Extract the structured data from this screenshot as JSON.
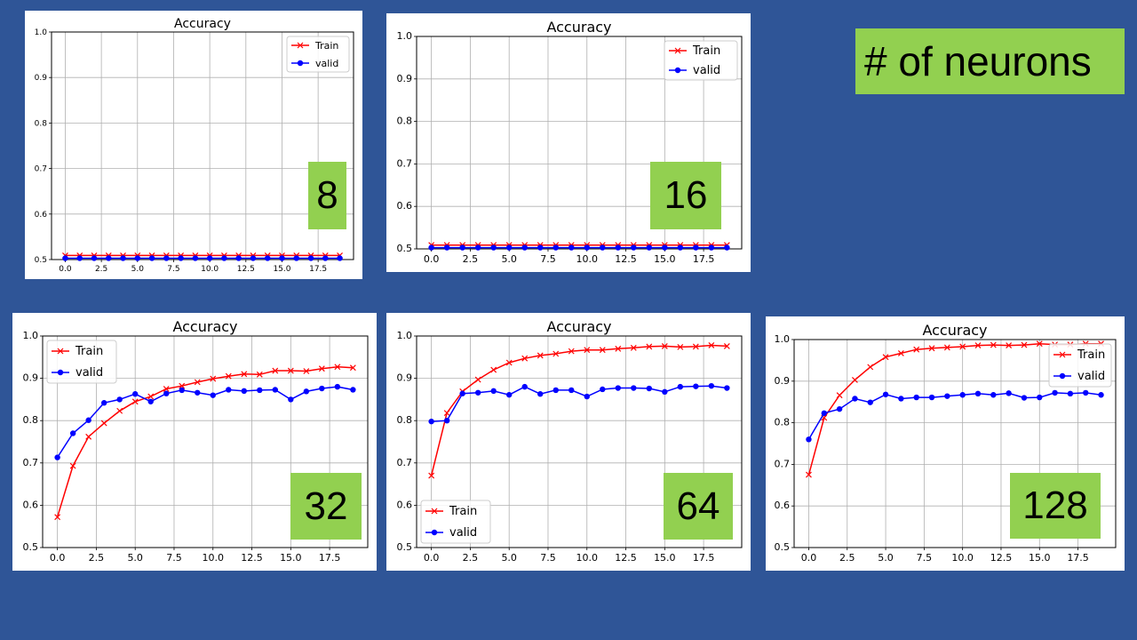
{
  "slide": {
    "heading": "# of neurons",
    "background_color": "#2f5597",
    "badge_color": "#92d050"
  },
  "chart_data": [
    {
      "type": "line",
      "title": "Accuracy",
      "badge": "8",
      "xlabel": "",
      "ylabel": "",
      "xlim": [
        -0.95,
        19.95
      ],
      "ylim": [
        0.5,
        1.0
      ],
      "xticks": [
        "0.0",
        "2.5",
        "5.0",
        "7.5",
        "10.0",
        "12.5",
        "15.0",
        "17.5"
      ],
      "yticks": [
        "0.5",
        "0.6",
        "0.7",
        "0.8",
        "0.9",
        "1.0"
      ],
      "grid": true,
      "legend": "upper right",
      "x": [
        0,
        1,
        2,
        3,
        4,
        5,
        6,
        7,
        8,
        9,
        10,
        11,
        12,
        13,
        14,
        15,
        16,
        17,
        18,
        19
      ],
      "series": [
        {
          "name": "Train",
          "color": "#ff0000",
          "marker": "x",
          "values": [
            0.509,
            0.509,
            0.509,
            0.509,
            0.509,
            0.509,
            0.509,
            0.509,
            0.509,
            0.509,
            0.509,
            0.509,
            0.509,
            0.509,
            0.509,
            0.509,
            0.509,
            0.509,
            0.509,
            0.509
          ]
        },
        {
          "name": "valid",
          "color": "#0000ff",
          "marker": "o",
          "values": [
            0.503,
            0.503,
            0.503,
            0.503,
            0.503,
            0.503,
            0.503,
            0.503,
            0.503,
            0.503,
            0.503,
            0.503,
            0.503,
            0.503,
            0.503,
            0.503,
            0.503,
            0.503,
            0.503,
            0.503
          ]
        }
      ]
    },
    {
      "type": "line",
      "title": "Accuracy",
      "badge": "16",
      "xlabel": "",
      "ylabel": "",
      "xlim": [
        -0.95,
        19.95
      ],
      "ylim": [
        0.5,
        1.0
      ],
      "xticks": [
        "0.0",
        "2.5",
        "5.0",
        "7.5",
        "10.0",
        "12.5",
        "15.0",
        "17.5"
      ],
      "yticks": [
        "0.5",
        "0.6",
        "0.7",
        "0.8",
        "0.9",
        "1.0"
      ],
      "grid": true,
      "legend": "upper right",
      "x": [
        0,
        1,
        2,
        3,
        4,
        5,
        6,
        7,
        8,
        9,
        10,
        11,
        12,
        13,
        14,
        15,
        16,
        17,
        18,
        19
      ],
      "series": [
        {
          "name": "Train",
          "color": "#ff0000",
          "marker": "x",
          "values": [
            0.509,
            0.509,
            0.509,
            0.509,
            0.509,
            0.509,
            0.509,
            0.509,
            0.509,
            0.509,
            0.509,
            0.509,
            0.509,
            0.509,
            0.509,
            0.509,
            0.509,
            0.509,
            0.509,
            0.509
          ]
        },
        {
          "name": "valid",
          "color": "#0000ff",
          "marker": "o",
          "values": [
            0.503,
            0.503,
            0.503,
            0.503,
            0.503,
            0.503,
            0.503,
            0.503,
            0.503,
            0.503,
            0.503,
            0.503,
            0.503,
            0.503,
            0.503,
            0.503,
            0.503,
            0.503,
            0.503,
            0.503
          ]
        }
      ]
    },
    {
      "type": "line",
      "title": "Accuracy",
      "badge": "32",
      "xlabel": "",
      "ylabel": "",
      "xlim": [
        -0.95,
        19.95
      ],
      "ylim": [
        0.5,
        1.0
      ],
      "xticks": [
        "0.0",
        "2.5",
        "5.0",
        "7.5",
        "10.0",
        "12.5",
        "15.0",
        "17.5"
      ],
      "yticks": [
        "0.5",
        "0.6",
        "0.7",
        "0.8",
        "0.9",
        "1.0"
      ],
      "grid": true,
      "legend": "upper left",
      "x": [
        0,
        1,
        2,
        3,
        4,
        5,
        6,
        7,
        8,
        9,
        10,
        11,
        12,
        13,
        14,
        15,
        16,
        17,
        18,
        19
      ],
      "series": [
        {
          "name": "Train",
          "color": "#ff0000",
          "marker": "x",
          "values": [
            0.572,
            0.693,
            0.762,
            0.794,
            0.823,
            0.845,
            0.857,
            0.875,
            0.882,
            0.891,
            0.899,
            0.905,
            0.91,
            0.909,
            0.918,
            0.918,
            0.917,
            0.923,
            0.927,
            0.925
          ]
        },
        {
          "name": "valid",
          "color": "#0000ff",
          "marker": "o",
          "values": [
            0.713,
            0.77,
            0.801,
            0.842,
            0.85,
            0.863,
            0.845,
            0.864,
            0.872,
            0.866,
            0.86,
            0.873,
            0.87,
            0.872,
            0.873,
            0.85,
            0.869,
            0.876,
            0.88,
            0.873
          ]
        }
      ]
    },
    {
      "type": "line",
      "title": "Accuracy",
      "badge": "64",
      "xlabel": "",
      "ylabel": "",
      "xlim": [
        -0.95,
        19.95
      ],
      "ylim": [
        0.5,
        1.0
      ],
      "xticks": [
        "0.0",
        "2.5",
        "5.0",
        "7.5",
        "10.0",
        "12.5",
        "15.0",
        "17.5"
      ],
      "yticks": [
        "0.5",
        "0.6",
        "0.7",
        "0.8",
        "0.9",
        "1.0"
      ],
      "grid": true,
      "legend": "lower left",
      "x": [
        0,
        1,
        2,
        3,
        4,
        5,
        6,
        7,
        8,
        9,
        10,
        11,
        12,
        13,
        14,
        15,
        16,
        17,
        18,
        19
      ],
      "series": [
        {
          "name": "Train",
          "color": "#ff0000",
          "marker": "x",
          "values": [
            0.67,
            0.818,
            0.869,
            0.897,
            0.92,
            0.937,
            0.947,
            0.954,
            0.958,
            0.964,
            0.967,
            0.967,
            0.97,
            0.972,
            0.975,
            0.976,
            0.974,
            0.975,
            0.978,
            0.976
          ]
        },
        {
          "name": "valid",
          "color": "#0000ff",
          "marker": "o",
          "values": [
            0.798,
            0.8,
            0.864,
            0.866,
            0.87,
            0.861,
            0.88,
            0.863,
            0.872,
            0.872,
            0.857,
            0.874,
            0.877,
            0.877,
            0.876,
            0.868,
            0.88,
            0.881,
            0.882,
            0.877
          ]
        }
      ]
    },
    {
      "type": "line",
      "title": "Accuracy",
      "badge": "128",
      "xlabel": "",
      "ylabel": "",
      "xlim": [
        -0.95,
        19.95
      ],
      "ylim": [
        0.5,
        1.0
      ],
      "xticks": [
        "0.0",
        "2.5",
        "5.0",
        "7.5",
        "10.0",
        "12.5",
        "15.0",
        "17.5"
      ],
      "yticks": [
        "0.5",
        "0.6",
        "0.7",
        "0.8",
        "0.9",
        "1.0"
      ],
      "grid": true,
      "legend": "upper right",
      "x": [
        0,
        1,
        2,
        3,
        4,
        5,
        6,
        7,
        8,
        9,
        10,
        11,
        12,
        13,
        14,
        15,
        16,
        17,
        18,
        19
      ],
      "series": [
        {
          "name": "Train",
          "color": "#ff0000",
          "marker": "x",
          "values": [
            0.675,
            0.812,
            0.866,
            0.903,
            0.934,
            0.958,
            0.967,
            0.976,
            0.979,
            0.981,
            0.983,
            0.986,
            0.987,
            0.986,
            0.987,
            0.99,
            0.988,
            0.988,
            0.99,
            0.99
          ]
        },
        {
          "name": "valid",
          "color": "#0000ff",
          "marker": "o",
          "values": [
            0.76,
            0.823,
            0.833,
            0.858,
            0.849,
            0.868,
            0.858,
            0.861,
            0.861,
            0.864,
            0.867,
            0.87,
            0.867,
            0.871,
            0.86,
            0.861,
            0.872,
            0.87,
            0.872,
            0.867
          ]
        }
      ]
    }
  ]
}
